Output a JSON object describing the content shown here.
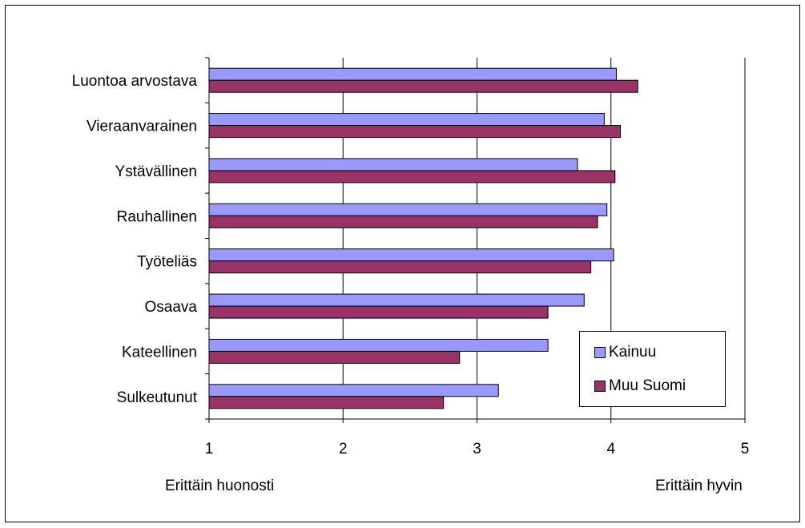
{
  "chart_data": {
    "type": "bar",
    "orientation": "horizontal",
    "categories": [
      "Luontoa arvostava",
      "Vieraanvarainen",
      "Ystävällinen",
      "Rauhallinen",
      "Työteliäs",
      "Osaava",
      "Kateellinen",
      "Sulkeutunut"
    ],
    "series": [
      {
        "name": "Kainuu",
        "color": "#9999ff",
        "values": [
          4.04,
          3.95,
          3.75,
          3.97,
          4.02,
          3.8,
          3.53,
          3.16
        ]
      },
      {
        "name": "Muu Suomi",
        "color": "#993366",
        "values": [
          4.2,
          4.07,
          4.03,
          3.9,
          3.85,
          3.53,
          2.87,
          2.75
        ]
      }
    ],
    "xlim": [
      1,
      5
    ],
    "xticks": [
      "1",
      "2",
      "3",
      "4",
      "5"
    ],
    "x_low_label": "Erittäin huonosti",
    "x_high_label": "Erittäin hyvin",
    "grid": true,
    "legend_position": "bottom-right"
  }
}
